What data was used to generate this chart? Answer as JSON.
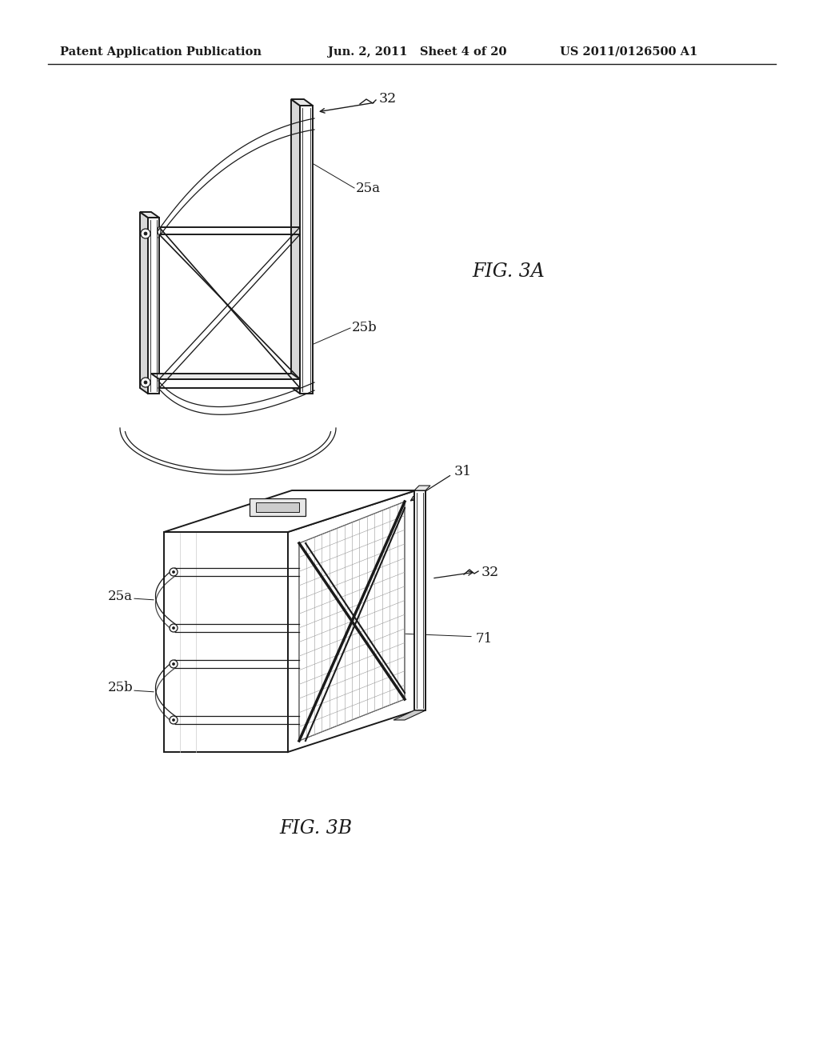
{
  "bg_color": "#ffffff",
  "line_color": "#1a1a1a",
  "gray_fill": "#e8e8e8",
  "gray_dark": "#cccccc",
  "gray_mid": "#d8d8d8",
  "mesh_color": "#999999",
  "header_left": "Patent Application Publication",
  "header_mid": "Jun. 2, 2011   Sheet 4 of 20",
  "header_right": "US 2011/0126500 A1",
  "fig3a_label": "FIG. 3A",
  "fig3b_label": "FIG. 3B",
  "label_32_top": "32",
  "label_25a_top": "25a",
  "label_25b_top": "25b",
  "label_31": "31",
  "label_32_bot": "32",
  "label_25a_bot": "25a",
  "label_25b_bot": "25b",
  "label_71": "71"
}
